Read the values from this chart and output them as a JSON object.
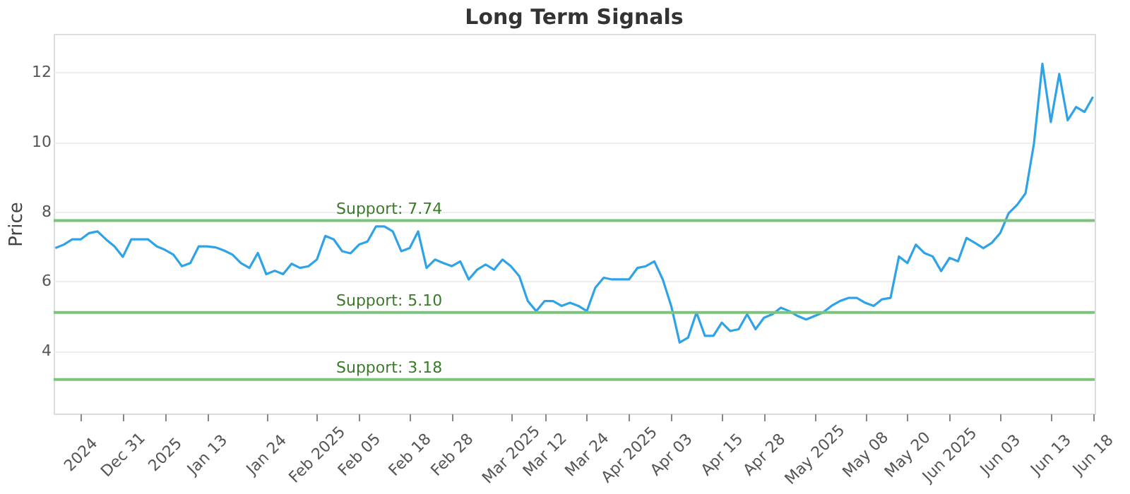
{
  "chart_data": {
    "type": "line",
    "title": "Long Term Signals",
    "ylabel": "Price",
    "categories": [
      null,
      null,
      null,
      "2024",
      null,
      null,
      null,
      null,
      "Dec 31",
      null,
      null,
      null,
      null,
      "2025",
      null,
      null,
      null,
      null,
      "Jan 13",
      null,
      null,
      null,
      null,
      null,
      null,
      "Jan 24",
      null,
      null,
      null,
      null,
      null,
      "Feb 2025",
      null,
      null,
      null,
      null,
      "Feb 05",
      null,
      null,
      null,
      null,
      null,
      "Feb 18",
      null,
      null,
      null,
      null,
      "Feb 28",
      null,
      null,
      null,
      null,
      null,
      null,
      "Mar 2025",
      null,
      null,
      null,
      "Mar 12",
      null,
      null,
      null,
      null,
      "Mar 24",
      null,
      null,
      null,
      null,
      "Apr 2025",
      null,
      null,
      null,
      null,
      "Apr 03",
      null,
      null,
      null,
      null,
      null,
      "Apr 15",
      null,
      null,
      null,
      null,
      "Apr 28",
      null,
      null,
      null,
      null,
      null,
      "May 2025",
      null,
      null,
      null,
      null,
      null,
      "May 08",
      null,
      null,
      null,
      null,
      "May 20",
      null,
      null,
      null,
      null,
      "Jun 2025",
      null,
      null,
      null,
      null,
      null,
      "Jun 03",
      null,
      null,
      null,
      null,
      null,
      "Jun 13",
      null,
      null,
      null,
      null,
      "Jun 18"
    ],
    "series": [
      {
        "color": "#2ea3e8",
        "values": [
          6.95,
          7.05,
          7.2,
          7.2,
          7.38,
          7.43,
          7.2,
          7.0,
          6.7,
          7.2,
          7.2,
          7.2,
          7.0,
          6.9,
          6.76,
          6.43,
          6.52,
          7.0,
          7.0,
          6.97,
          6.88,
          6.76,
          6.52,
          6.38,
          6.81,
          6.2,
          6.3,
          6.2,
          6.5,
          6.38,
          6.43,
          6.62,
          7.3,
          7.2,
          6.86,
          6.8,
          7.05,
          7.14,
          7.57,
          7.57,
          7.43,
          6.86,
          6.95,
          7.43,
          6.38,
          6.62,
          6.52,
          6.43,
          6.57,
          6.05,
          6.33,
          6.48,
          6.33,
          6.62,
          6.43,
          6.14,
          5.43,
          5.14,
          5.43,
          5.43,
          5.29,
          5.38,
          5.29,
          5.14,
          5.81,
          6.1,
          6.05,
          6.05,
          6.05,
          6.38,
          6.43,
          6.57,
          6.05,
          5.29,
          4.24,
          4.38,
          5.1,
          4.43,
          4.43,
          4.81,
          4.57,
          4.62,
          5.05,
          4.62,
          4.95,
          5.05,
          5.24,
          5.14,
          5.0,
          4.9,
          5.0,
          5.1,
          5.29,
          5.43,
          5.52,
          5.52,
          5.38,
          5.29,
          5.48,
          5.52,
          6.71,
          6.52,
          7.05,
          6.81,
          6.71,
          6.29,
          6.67,
          6.57,
          7.24,
          7.1,
          6.95,
          7.1,
          7.38,
          7.95,
          8.19,
          8.52,
          9.95,
          12.24,
          10.57,
          11.95,
          10.62,
          11.0,
          10.86,
          11.29
        ]
      }
    ],
    "ylim": [
      2.2,
      13.1
    ],
    "yticks": [
      4,
      6,
      8,
      10,
      12
    ],
    "grid": "y",
    "marker": "none",
    "line_style": "solid",
    "ref_lines": [
      {
        "axis": "y",
        "value": 7.74,
        "label": "Support: 7.74",
        "color": "#7cc47c"
      },
      {
        "axis": "y",
        "value": 5.1,
        "label": "Support: 5.10",
        "color": "#7cc47c"
      },
      {
        "axis": "y",
        "value": 3.18,
        "label": "Support: 3.18",
        "color": "#7cc47c"
      }
    ]
  }
}
